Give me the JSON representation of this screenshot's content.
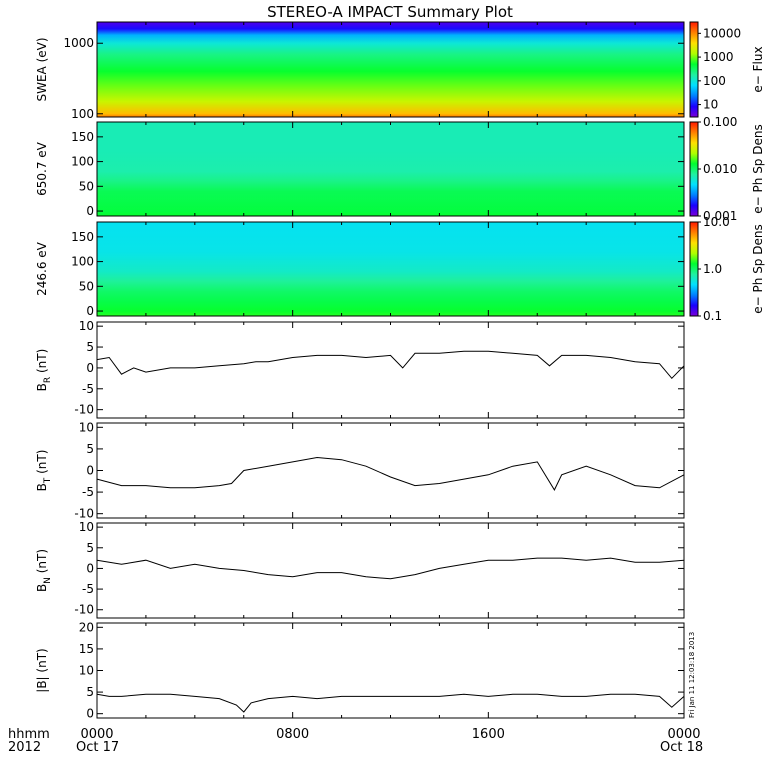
{
  "title": "STEREO-A IMPACT Summary Plot",
  "footer": {
    "hhmm": "hhmm",
    "year": "2012",
    "start_date": "Oct 17",
    "end_date": "Oct 18",
    "timestamp": "Fri Jan 11 12:03:18 2013"
  },
  "colors": {
    "colormap": [
      "#7a00d8",
      "#1a00ff",
      "#0080ff",
      "#00e0ff",
      "#20f0a0",
      "#00ff30",
      "#b0ff00",
      "#ffe000",
      "#ff8000",
      "#ff1800"
    ],
    "trace": "#000000",
    "axes": "#000000"
  },
  "chart_data": [
    {
      "type": "heatmap",
      "name": "swea",
      "ylabel": "SWEA (eV)",
      "yscale": "log",
      "ylim": [
        90,
        2000
      ],
      "yticks": [
        {
          "v": 1000,
          "label": "1000"
        },
        {
          "v": 100,
          "label": "100"
        }
      ],
      "colorbar": {
        "label": "e− Flux",
        "scale": "log",
        "range": [
          3,
          30000
        ],
        "ticks": [
          {
            "v": 10000,
            "label": "10000"
          },
          {
            "v": 1000,
            "label": "1000"
          },
          {
            "v": 100,
            "label": "100"
          },
          {
            "v": 10,
            "label": "10"
          }
        ]
      },
      "profile": {
        "y": [
          90,
          100,
          150,
          250,
          400,
          700,
          1000,
          1300,
          1600,
          2000
        ],
        "z": [
          0.9,
          0.82,
          0.7,
          0.62,
          0.56,
          0.47,
          0.38,
          0.28,
          0.12,
          0.05
        ]
      }
    },
    {
      "type": "heatmap",
      "name": "pad650",
      "ylabel": "650.7 eV",
      "yscale": "linear",
      "ylim": [
        -10,
        180
      ],
      "yticks": [
        {
          "v": 150,
          "label": "150"
        },
        {
          "v": 100,
          "label": "100"
        },
        {
          "v": 50,
          "label": "50"
        },
        {
          "v": 0,
          "label": "0"
        }
      ],
      "colorbar": {
        "label": "e− Ph Sp Dens",
        "scale": "log",
        "range": [
          0.001,
          0.1
        ],
        "ticks": [
          {
            "v": 0.1,
            "label": "0.100"
          },
          {
            "v": 0.01,
            "label": "0.010"
          },
          {
            "v": 0.001,
            "label": "0.001"
          }
        ]
      },
      "profile": {
        "y": [
          -10,
          0,
          20,
          40,
          60,
          80,
          120,
          180
        ],
        "z": [
          0.56,
          0.54,
          0.53,
          0.52,
          0.47,
          0.43,
          0.42,
          0.42
        ]
      }
    },
    {
      "type": "heatmap",
      "name": "pad246",
      "ylabel": "246.6 eV",
      "yscale": "linear",
      "ylim": [
        -10,
        180
      ],
      "yticks": [
        {
          "v": 150,
          "label": "150"
        },
        {
          "v": 100,
          "label": "100"
        },
        {
          "v": 50,
          "label": "50"
        },
        {
          "v": 0,
          "label": "0"
        }
      ],
      "colorbar": {
        "label": "e− Ph Sp Dens",
        "scale": "log",
        "range": [
          0.1,
          10
        ],
        "ticks": [
          {
            "v": 10,
            "label": "10.0"
          },
          {
            "v": 1,
            "label": "1.0"
          },
          {
            "v": 0.1,
            "label": "0.1"
          }
        ]
      },
      "profile": {
        "y": [
          -10,
          0,
          20,
          40,
          60,
          80,
          120,
          180
        ],
        "z": [
          0.58,
          0.56,
          0.53,
          0.5,
          0.45,
          0.4,
          0.36,
          0.35
        ]
      }
    },
    {
      "type": "line",
      "name": "br",
      "ylabel": "B",
      "ylabel_sub": "R",
      "ylabel_unit": "(nT)",
      "ylim": [
        -12,
        11
      ],
      "yticks": [
        10,
        5,
        0,
        -5,
        -10
      ],
      "x": [
        0,
        0.5,
        1,
        1.5,
        2,
        3,
        4,
        5,
        6,
        6.5,
        7,
        8,
        9,
        10,
        11,
        12,
        12.5,
        13,
        14,
        15,
        16,
        17,
        18,
        18.5,
        19,
        20,
        21,
        22,
        23,
        23.5,
        24
      ],
      "y": [
        2,
        2.5,
        -1.5,
        0,
        -1,
        0,
        0,
        0.5,
        1,
        1.5,
        1.5,
        2.5,
        3,
        3,
        2.5,
        3,
        0,
        3.5,
        3.5,
        4,
        4,
        3.5,
        3,
        0.5,
        3,
        3,
        2.5,
        1.5,
        1,
        -2.5,
        0.5
      ]
    },
    {
      "type": "line",
      "name": "bt",
      "ylabel": "B",
      "ylabel_sub": "T",
      "ylabel_unit": "(nT)",
      "ylim": [
        -11,
        11
      ],
      "yticks": [
        10,
        5,
        0,
        -5,
        -10
      ],
      "x": [
        0,
        1,
        2,
        3,
        4,
        5,
        5.5,
        6,
        7,
        8,
        9,
        10,
        11,
        12,
        13,
        14,
        15,
        16,
        17,
        18,
        18.7,
        19,
        20,
        21,
        22,
        23,
        24
      ],
      "y": [
        -2,
        -3.5,
        -3.5,
        -4,
        -4,
        -3.5,
        -3,
        0,
        1,
        2,
        3,
        2.5,
        1,
        -1.5,
        -3.5,
        -3,
        -2,
        -1,
        1,
        2,
        -4.5,
        -1,
        1,
        -1,
        -3.5,
        -4,
        -1
      ]
    },
    {
      "type": "line",
      "name": "bn",
      "ylabel": "B",
      "ylabel_sub": "N",
      "ylabel_unit": "(nT)",
      "ylim": [
        -12,
        11
      ],
      "yticks": [
        10,
        5,
        0,
        -5,
        -10
      ],
      "x": [
        0,
        1,
        2,
        3,
        4,
        5,
        6,
        7,
        8,
        9,
        10,
        11,
        12,
        13,
        14,
        15,
        16,
        17,
        18,
        19,
        20,
        21,
        22,
        23,
        24
      ],
      "y": [
        2,
        1,
        2,
        0,
        1,
        0,
        -0.5,
        -1.5,
        -2,
        -1,
        -1,
        -2,
        -2.5,
        -1.5,
        0,
        1,
        2,
        2,
        2.5,
        2.5,
        2,
        2.5,
        1.5,
        1.5,
        2
      ]
    },
    {
      "type": "line",
      "name": "bmag",
      "ylabel": "|B| (nT)",
      "ylim": [
        -1,
        21
      ],
      "yticks": [
        20,
        15,
        10,
        5,
        0
      ],
      "x": [
        0,
        0.5,
        1,
        2,
        3,
        4,
        5,
        5.7,
        6,
        6.3,
        7,
        8,
        9,
        10,
        11,
        12,
        13,
        14,
        15,
        16,
        17,
        18,
        19,
        20,
        21,
        22,
        23,
        23.5,
        24
      ],
      "y": [
        4.5,
        4,
        4,
        4.5,
        4.5,
        4,
        3.5,
        2,
        0.4,
        2.5,
        3.5,
        4,
        3.5,
        4,
        4,
        4,
        4,
        4,
        4.5,
        4,
        4.5,
        4.5,
        4,
        4,
        4.5,
        4.5,
        4,
        1.5,
        4
      ]
    }
  ],
  "x_axis": {
    "range_hours": [
      0,
      24
    ],
    "ticks": [
      {
        "h": 0,
        "label": "0000"
      },
      {
        "h": 8,
        "label": "0800"
      },
      {
        "h": 16,
        "label": "1600"
      },
      {
        "h": 24,
        "label": "0000"
      }
    ]
  }
}
